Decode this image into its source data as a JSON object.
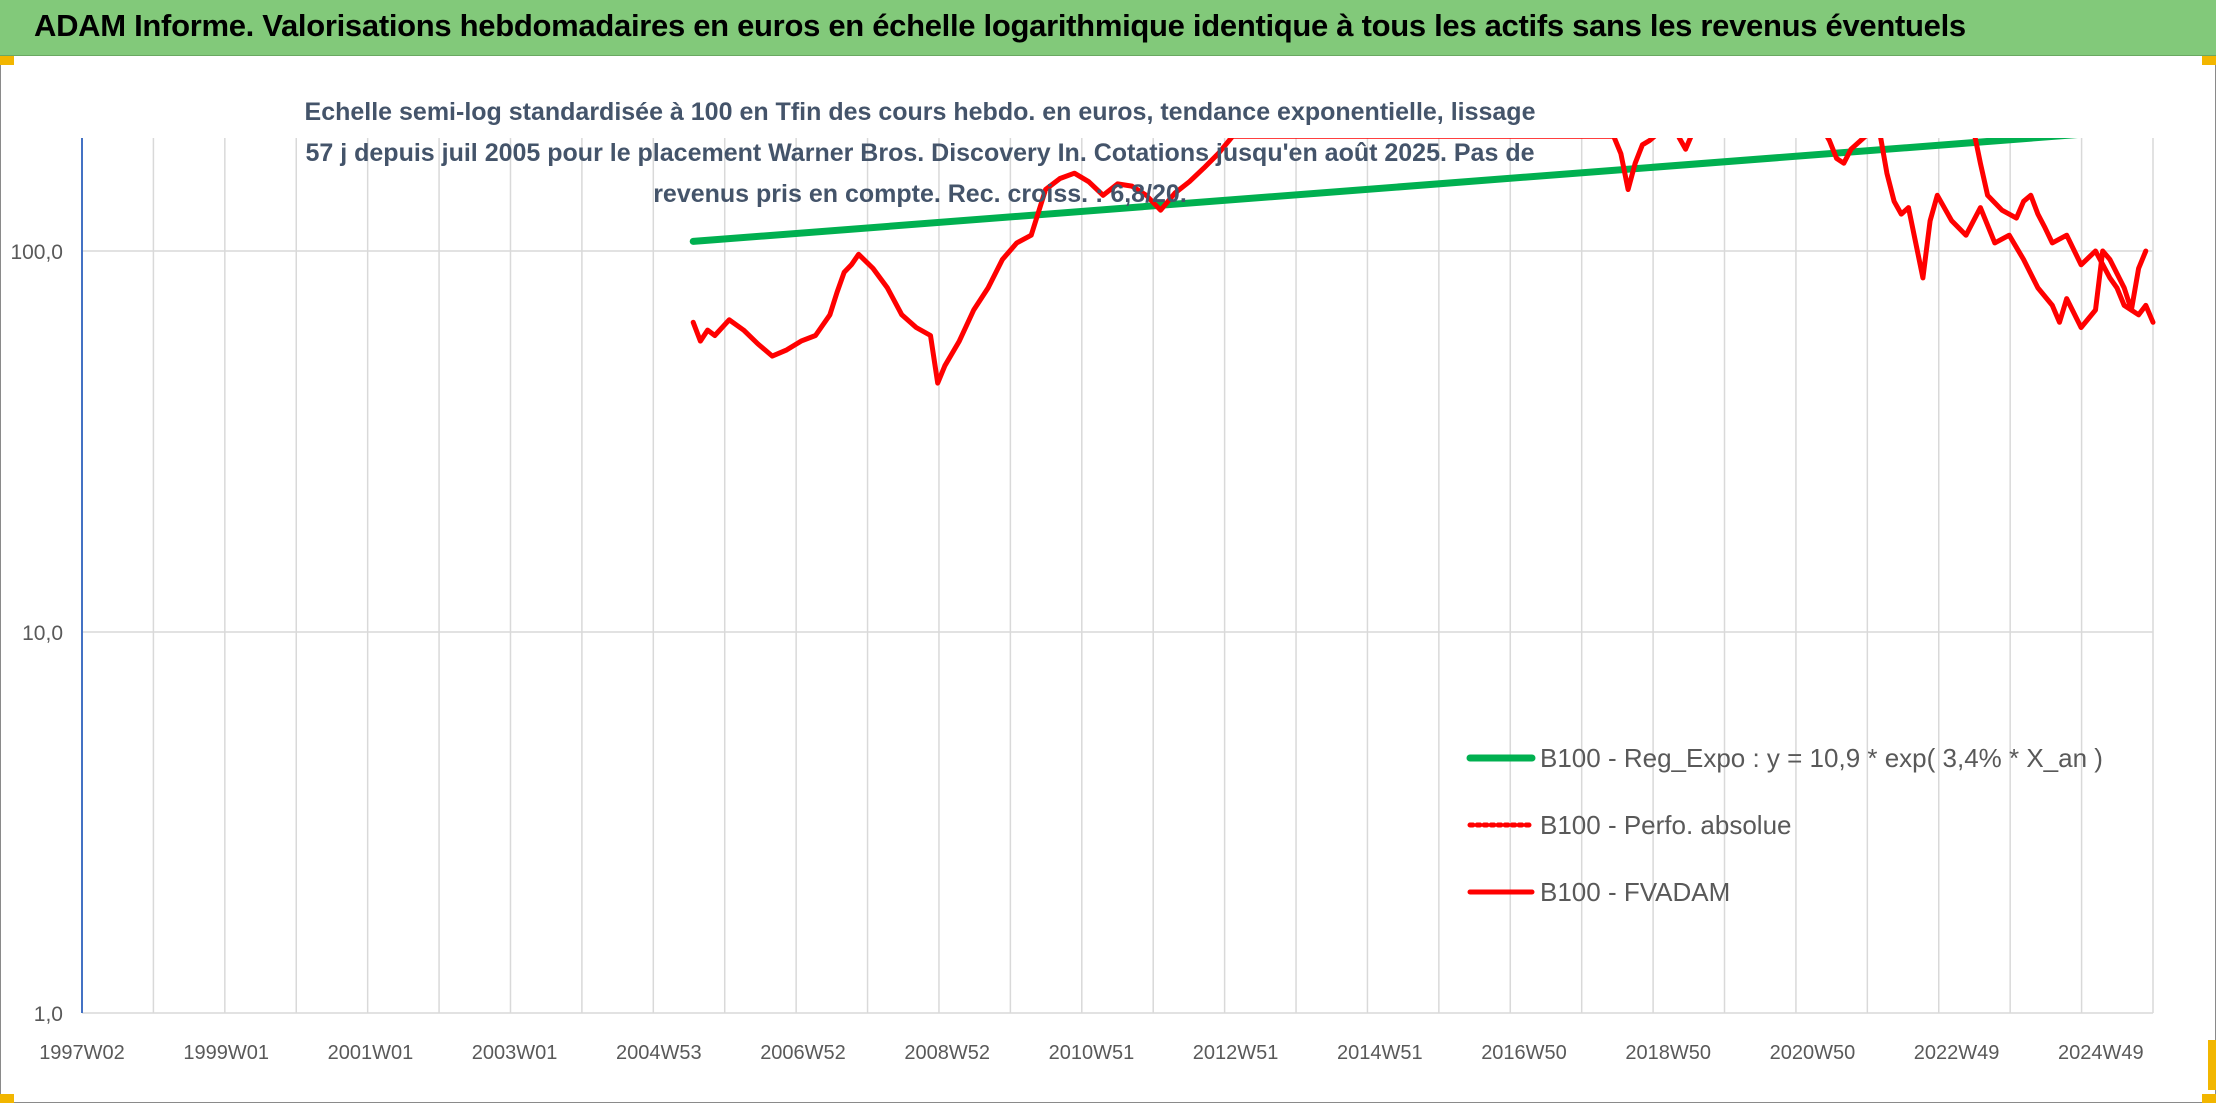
{
  "banner": {
    "title": "ADAM Informe. Valorisations hebdomadaires en euros en échelle logarithmique identique à tous les actifs sans les revenus éventuels"
  },
  "colors": {
    "banner_bg": "#82c97a",
    "corner_accent": "#f2b600",
    "regression": "#00b050",
    "perf": "#ff0000",
    "fvadam": "#ff0000",
    "gridline": "#d9d9d9",
    "y_axis": "#4472c4",
    "title_text": "#44546a"
  },
  "chart_data": {
    "type": "line",
    "title": "Echelle semi-log standardisée à 100 en Tfin des cours hebdo. en euros, tendance exponentielle, lissage 57 j depuis juil 2005 pour le placement Warner Bros. Discovery In. Cotations jusqu'en août 2025. Pas de revenus pris en compte. Rec. croiss. : 6,8/20.",
    "y_scale": "log",
    "ylim": [
      1,
      200
    ],
    "y_ticks": [
      1,
      10,
      100
    ],
    "y_tick_labels": [
      "1,0",
      "10,0",
      "100,0"
    ],
    "x_range": [
      1997.0,
      2025.8
    ],
    "x_tick_labels": [
      "1997W02",
      "1999W01",
      "2001W01",
      "2003W01",
      "2004W53",
      "2006W52",
      "2008W52",
      "2010W51",
      "2012W51",
      "2014W51",
      "2016W50",
      "2018W50",
      "2020W50",
      "2022W49",
      "2024W49"
    ],
    "grid": true,
    "legend_position": "right",
    "series": [
      {
        "name": "B100 - Reg_Expo : y = 10,9 * exp( 3,4% *  X_an )",
        "style": "solid-thick",
        "color": "#00b050",
        "x": [
          2005.5,
          2025.6
        ],
        "y": [
          106.0,
          208.0
        ]
      },
      {
        "name": "B100 - Perfo. absolue",
        "style": "dotted",
        "color": "#ff0000",
        "x": [],
        "y": []
      },
      {
        "name": "B100 - FVADAM",
        "style": "solid",
        "color": "#ff0000",
        "x": [
          2005.5,
          2005.6,
          2005.7,
          2005.8,
          2006.0,
          2006.2,
          2006.4,
          2006.6,
          2006.8,
          2007.0,
          2007.2,
          2007.4,
          2007.5,
          2007.6,
          2007.7,
          2007.8,
          2008.0,
          2008.2,
          2008.4,
          2008.6,
          2008.8,
          2008.9,
          2009.0,
          2009.2,
          2009.4,
          2009.6,
          2009.8,
          2010.0,
          2010.2,
          2010.4,
          2010.6,
          2010.8,
          2011.0,
          2011.2,
          2011.4,
          2011.6,
          2011.8,
          2012.0,
          2012.2,
          2012.4,
          2012.6,
          2012.8,
          2013.0,
          2018.3,
          2018.4,
          2018.5,
          2018.6,
          2018.7,
          2018.8,
          2019.0,
          2019.2,
          2019.3,
          2019.4,
          2021.2,
          2021.3,
          2021.4,
          2021.5,
          2021.6,
          2021.8,
          2022.0,
          2023.3,
          2023.4,
          2023.5,
          2023.7,
          2023.9,
          2024.0,
          2024.1,
          2024.2,
          2024.3,
          2024.4,
          2024.6,
          2024.8,
          2025.0,
          2025.2,
          2025.3,
          2025.4,
          2025.6,
          2025.7,
          2025.8
        ],
        "y": [
          65,
          58,
          62,
          60,
          66,
          62,
          57,
          53,
          55,
          58,
          60,
          68,
          78,
          88,
          92,
          98,
          90,
          80,
          68,
          63,
          60,
          45,
          50,
          58,
          70,
          80,
          95,
          105,
          110,
          145,
          155,
          160,
          152,
          140,
          150,
          148,
          140,
          128,
          142,
          152,
          165,
          180,
          200,
          200,
          180,
          145,
          170,
          190,
          195,
          210,
          200,
          185,
          205,
          210,
          195,
          175,
          170,
          185,
          200,
          210,
          210,
          170,
          140,
          128,
          122,
          135,
          140,
          125,
          115,
          105,
          110,
          92,
          100,
          85,
          80,
          72,
          68,
          72,
          65
        ]
      },
      {
        "name": "",
        "style": "solid",
        "color": "#ff0000",
        "x": [
          2022.0,
          2022.1,
          2022.2,
          2022.3,
          2022.4,
          2022.6,
          2022.7,
          2022.8,
          2023.0,
          2023.2,
          2023.4,
          2023.6,
          2023.8,
          2024.0,
          2024.2,
          2024.4,
          2024.5,
          2024.6,
          2024.8,
          2025.0,
          2025.1,
          2025.2,
          2025.4,
          2025.5,
          2025.6,
          2025.7
        ],
        "y": [
          205,
          160,
          135,
          125,
          130,
          85,
          120,
          140,
          120,
          110,
          130,
          105,
          110,
          95,
          80,
          72,
          65,
          75,
          63,
          70,
          100,
          95,
          80,
          70,
          90,
          100
        ]
      }
    ]
  }
}
